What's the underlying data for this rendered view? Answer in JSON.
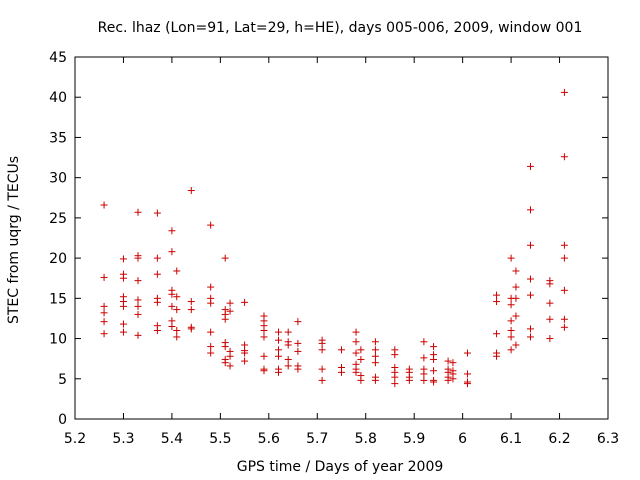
{
  "chart_data": {
    "type": "scatter",
    "title": "Rec. lhaz (Lon=91, Lat=29, h=HE), days 005-006, 2009, window 001",
    "xlabel": "GPS time / Days of year 2009",
    "ylabel": "STEC from uqrg / TECUs",
    "xlim": [
      5.2,
      6.3
    ],
    "ylim": [
      0,
      45
    ],
    "xticks": [
      "5.2",
      "5.3",
      "5.4",
      "5.5",
      "5.6",
      "5.7",
      "5.8",
      "5.9",
      "6",
      "6.1",
      "6.2",
      "6.3"
    ],
    "yticks": [
      "0",
      "5",
      "10",
      "15",
      "20",
      "25",
      "30",
      "35",
      "40",
      "45"
    ],
    "grid": false,
    "marker": "+",
    "color": "#cc0000",
    "series": [
      {
        "name": "STEC",
        "points": [
          [
            5.26,
            26.6
          ],
          [
            5.26,
            17.6
          ],
          [
            5.26,
            14.0
          ],
          [
            5.26,
            13.2
          ],
          [
            5.26,
            12.1
          ],
          [
            5.26,
            10.6
          ],
          [
            5.3,
            19.9
          ],
          [
            5.3,
            18.0
          ],
          [
            5.3,
            17.5
          ],
          [
            5.3,
            15.2
          ],
          [
            5.3,
            14.6
          ],
          [
            5.3,
            14.0
          ],
          [
            5.3,
            11.8
          ],
          [
            5.3,
            10.8
          ],
          [
            5.33,
            25.7
          ],
          [
            5.33,
            20.3
          ],
          [
            5.33,
            20.0
          ],
          [
            5.33,
            17.2
          ],
          [
            5.33,
            14.8
          ],
          [
            5.33,
            14.0
          ],
          [
            5.33,
            13.0
          ],
          [
            5.33,
            10.4
          ],
          [
            5.37,
            25.6
          ],
          [
            5.37,
            20.0
          ],
          [
            5.37,
            18.0
          ],
          [
            5.37,
            15.0
          ],
          [
            5.37,
            14.5
          ],
          [
            5.37,
            11.6
          ],
          [
            5.37,
            11.0
          ],
          [
            5.4,
            23.4
          ],
          [
            5.4,
            20.8
          ],
          [
            5.4,
            16.0
          ],
          [
            5.4,
            15.5
          ],
          [
            5.4,
            14.0
          ],
          [
            5.4,
            12.2
          ],
          [
            5.4,
            11.5
          ],
          [
            5.41,
            18.4
          ],
          [
            5.41,
            15.2
          ],
          [
            5.41,
            13.6
          ],
          [
            5.41,
            11.0
          ],
          [
            5.41,
            10.2
          ],
          [
            5.44,
            28.4
          ],
          [
            5.44,
            14.6
          ],
          [
            5.44,
            13.6
          ],
          [
            5.44,
            11.4
          ],
          [
            5.44,
            11.2
          ],
          [
            5.48,
            24.1
          ],
          [
            5.48,
            16.4
          ],
          [
            5.48,
            15.0
          ],
          [
            5.48,
            14.4
          ],
          [
            5.48,
            10.8
          ],
          [
            5.48,
            9.0
          ],
          [
            5.48,
            8.2
          ],
          [
            5.51,
            20.0
          ],
          [
            5.51,
            13.6
          ],
          [
            5.51,
            13.0
          ],
          [
            5.51,
            12.4
          ],
          [
            5.51,
            9.5
          ],
          [
            5.51,
            9.0
          ],
          [
            5.51,
            7.4
          ],
          [
            5.51,
            7.0
          ],
          [
            5.52,
            14.4
          ],
          [
            5.52,
            13.4
          ],
          [
            5.52,
            8.4
          ],
          [
            5.52,
            7.8
          ],
          [
            5.52,
            6.6
          ],
          [
            5.55,
            14.5
          ],
          [
            5.55,
            9.2
          ],
          [
            5.55,
            8.5
          ],
          [
            5.55,
            8.2
          ],
          [
            5.55,
            7.2
          ],
          [
            5.59,
            12.8
          ],
          [
            5.59,
            12.2
          ],
          [
            5.59,
            11.6
          ],
          [
            5.59,
            11.0
          ],
          [
            5.59,
            10.2
          ],
          [
            5.59,
            7.8
          ],
          [
            5.59,
            6.2
          ],
          [
            5.59,
            6.0
          ],
          [
            5.62,
            10.8
          ],
          [
            5.62,
            9.8
          ],
          [
            5.62,
            8.6
          ],
          [
            5.62,
            7.8
          ],
          [
            5.62,
            6.2
          ],
          [
            5.62,
            5.8
          ],
          [
            5.64,
            10.8
          ],
          [
            5.64,
            9.6
          ],
          [
            5.64,
            9.2
          ],
          [
            5.64,
            7.4
          ],
          [
            5.64,
            6.6
          ],
          [
            5.66,
            12.1
          ],
          [
            5.66,
            9.4
          ],
          [
            5.66,
            8.4
          ],
          [
            5.66,
            6.6
          ],
          [
            5.66,
            6.2
          ],
          [
            5.71,
            9.8
          ],
          [
            5.71,
            9.4
          ],
          [
            5.71,
            8.6
          ],
          [
            5.71,
            6.2
          ],
          [
            5.71,
            4.8
          ],
          [
            5.75,
            8.6
          ],
          [
            5.75,
            6.4
          ],
          [
            5.75,
            5.8
          ],
          [
            5.78,
            10.8
          ],
          [
            5.78,
            9.6
          ],
          [
            5.78,
            8.2
          ],
          [
            5.78,
            6.8
          ],
          [
            5.78,
            6.2
          ],
          [
            5.78,
            5.8
          ],
          [
            5.79,
            8.6
          ],
          [
            5.79,
            7.4
          ],
          [
            5.79,
            5.4
          ],
          [
            5.79,
            4.8
          ],
          [
            5.82,
            9.6
          ],
          [
            5.82,
            8.6
          ],
          [
            5.82,
            7.8
          ],
          [
            5.82,
            7.0
          ],
          [
            5.82,
            5.2
          ],
          [
            5.82,
            4.8
          ],
          [
            5.86,
            8.6
          ],
          [
            5.86,
            8.0
          ],
          [
            5.86,
            6.4
          ],
          [
            5.86,
            5.8
          ],
          [
            5.86,
            5.2
          ],
          [
            5.86,
            4.4
          ],
          [
            5.89,
            6.2
          ],
          [
            5.89,
            5.8
          ],
          [
            5.89,
            5.2
          ],
          [
            5.89,
            4.8
          ],
          [
            5.92,
            9.6
          ],
          [
            5.92,
            7.6
          ],
          [
            5.92,
            6.2
          ],
          [
            5.92,
            5.6
          ],
          [
            5.92,
            4.8
          ],
          [
            5.94,
            9.0
          ],
          [
            5.94,
            8.0
          ],
          [
            5.94,
            7.4
          ],
          [
            5.94,
            6.0
          ],
          [
            5.94,
            4.8
          ],
          [
            5.94,
            4.6
          ],
          [
            5.97,
            7.2
          ],
          [
            5.97,
            6.2
          ],
          [
            5.97,
            5.8
          ],
          [
            5.97,
            5.2
          ],
          [
            5.97,
            4.8
          ],
          [
            5.98,
            7.0
          ],
          [
            5.98,
            6.0
          ],
          [
            5.98,
            5.6
          ],
          [
            5.98,
            5.0
          ],
          [
            6.01,
            8.2
          ],
          [
            6.01,
            5.6
          ],
          [
            6.01,
            4.6
          ],
          [
            6.01,
            4.4
          ],
          [
            6.07,
            15.4
          ],
          [
            6.07,
            14.6
          ],
          [
            6.07,
            10.6
          ],
          [
            6.07,
            8.2
          ],
          [
            6.07,
            7.8
          ],
          [
            6.1,
            20.0
          ],
          [
            6.1,
            15.0
          ],
          [
            6.1,
            14.2
          ],
          [
            6.1,
            12.2
          ],
          [
            6.1,
            11.0
          ],
          [
            6.1,
            10.2
          ],
          [
            6.1,
            8.6
          ],
          [
            6.11,
            18.4
          ],
          [
            6.11,
            16.4
          ],
          [
            6.11,
            15.0
          ],
          [
            6.11,
            12.8
          ],
          [
            6.11,
            9.2
          ],
          [
            6.14,
            31.4
          ],
          [
            6.14,
            26.0
          ],
          [
            6.14,
            21.6
          ],
          [
            6.14,
            17.4
          ],
          [
            6.14,
            15.4
          ],
          [
            6.14,
            11.2
          ],
          [
            6.14,
            10.2
          ],
          [
            6.18,
            17.2
          ],
          [
            6.18,
            16.8
          ],
          [
            6.18,
            14.4
          ],
          [
            6.18,
            12.4
          ],
          [
            6.18,
            10.0
          ],
          [
            6.21,
            40.6
          ],
          [
            6.21,
            32.6
          ],
          [
            6.21,
            21.6
          ],
          [
            6.21,
            20.0
          ],
          [
            6.21,
            16.0
          ],
          [
            6.21,
            12.4
          ],
          [
            6.21,
            11.4
          ]
        ]
      }
    ]
  }
}
